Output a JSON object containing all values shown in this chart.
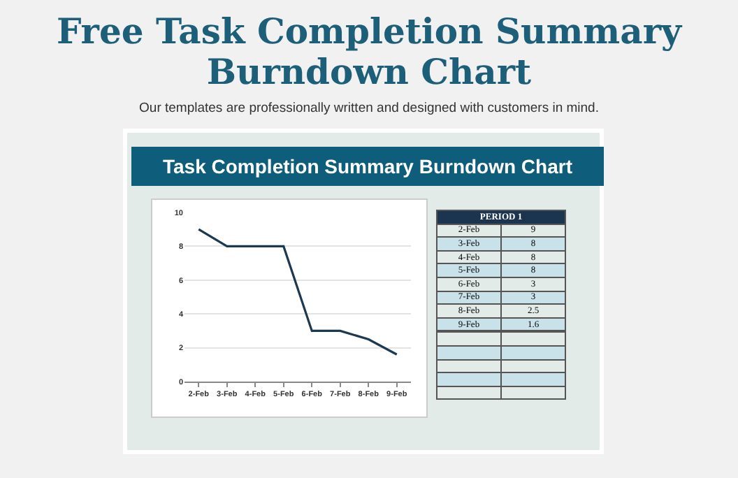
{
  "chart_data": [
    {
      "type": "line",
      "title": "Free Task Completion Summary Burndown Chart",
      "subtitle": "Our templates are professionally written and designed with customers in mind.",
      "annotations": [
        "Task Completion Summary Burndown Chart"
      ],
      "categories": [
        "2-Feb",
        "3-Feb",
        "4-Feb",
        "5-Feb",
        "6-Feb",
        "7-Feb",
        "8-Feb",
        "9-Feb"
      ],
      "series": [
        {
          "color": "#1b3a52",
          "values": [
            9,
            8,
            8,
            8,
            3,
            3,
            2.5,
            1.6
          ]
        }
      ],
      "ylim": [
        0,
        10
      ],
      "yticks": [
        0,
        2,
        4,
        6,
        8,
        10
      ],
      "grid": "y",
      "marker": "none",
      "line_style": "solid"
    },
    {
      "type": "other",
      "title": "PERIOD 1",
      "categories": [
        "2-Feb",
        "3-Feb",
        "4-Feb",
        "5-Feb",
        "6-Feb",
        "7-Feb",
        "8-Feb",
        "9-Feb"
      ],
      "values": [
        9,
        8,
        8,
        8,
        3,
        3,
        2.5,
        1.6
      ],
      "data_labels": true
    }
  ]
}
